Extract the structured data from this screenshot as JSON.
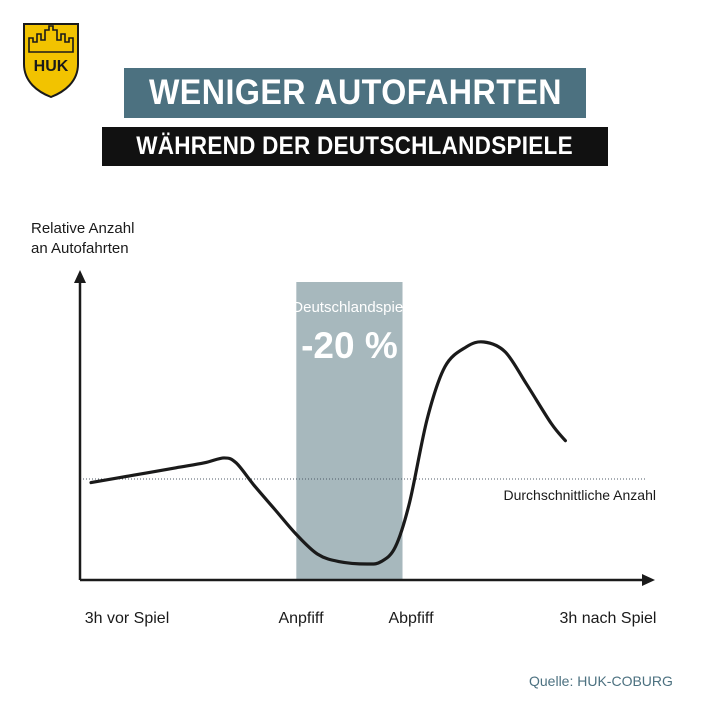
{
  "brand": {
    "logo_text": "HUK"
  },
  "header": {
    "title": "WENIGER AUTOFAHRTEN",
    "subtitle": "WÄHREND DER DEUTSCHLANDSPIELE"
  },
  "source": "Quelle: HUK-COBURG",
  "colors": {
    "title_bg": "#4c7180",
    "subtitle_bg": "#111111",
    "highlight_band": "#a7b8bd",
    "curve": "#1a1a1a",
    "logo_gold": "#f2c300"
  },
  "chart_data": {
    "type": "line",
    "xlabel": "",
    "ylabel_lines": [
      "Relative Anzahl",
      "an Autofahrten"
    ],
    "tick_labels": [
      {
        "label": "3h vor Spiel",
        "x": 0
      },
      {
        "label": "Anpfiff",
        "x": 3
      },
      {
        "label": "Abpfiff",
        "x": 4.5
      },
      {
        "label": "3h nach Spiel",
        "x": 7.5
      }
    ],
    "xlim": [
      -0.1,
      7.9
    ],
    "ylim": [
      0,
      100
    ],
    "grid": false,
    "average_line": {
      "y": 45,
      "label": "Durchschnittliche Anzahl"
    },
    "highlight": {
      "x_start": 2.9,
      "x_end": 4.4,
      "label": "Deutschlandspiel",
      "value_label": "-20 %"
    },
    "series": [
      {
        "points": [
          [
            0.0,
            40
          ],
          [
            0.6,
            43
          ],
          [
            1.2,
            46
          ],
          [
            1.6,
            48
          ],
          [
            1.88,
            50
          ],
          [
            2.05,
            48
          ],
          [
            2.3,
            39
          ],
          [
            2.6,
            29
          ],
          [
            2.9,
            19
          ],
          [
            3.2,
            11
          ],
          [
            3.5,
            8
          ],
          [
            3.9,
            7
          ],
          [
            4.1,
            8
          ],
          [
            4.3,
            14
          ],
          [
            4.5,
            32
          ],
          [
            4.75,
            66
          ],
          [
            5.0,
            87
          ],
          [
            5.3,
            95
          ],
          [
            5.55,
            97
          ],
          [
            5.85,
            93
          ],
          [
            6.15,
            80
          ],
          [
            6.5,
            64
          ],
          [
            6.7,
            57
          ]
        ]
      }
    ]
  }
}
